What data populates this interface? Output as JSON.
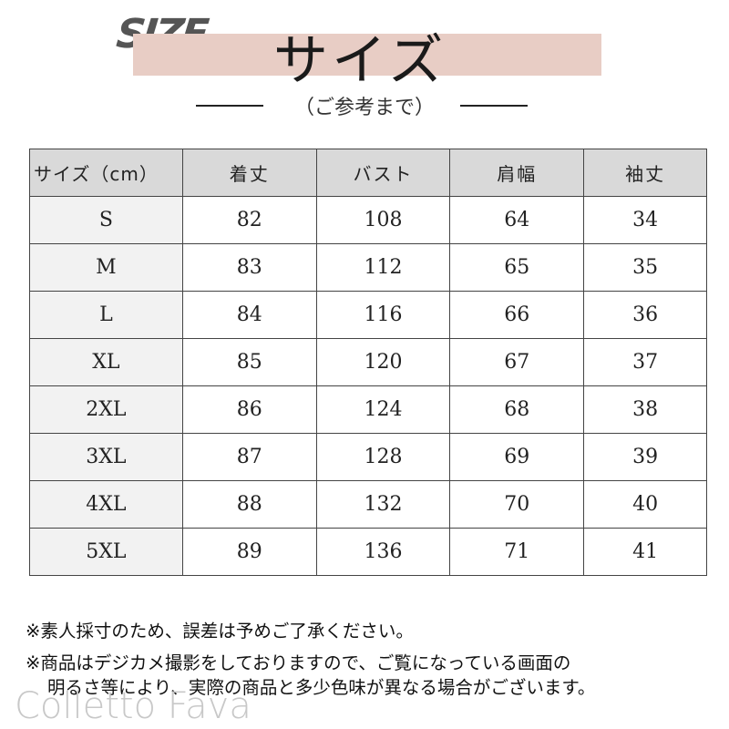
{
  "header": {
    "logo": "SIZE",
    "title": "サイズ",
    "subtitle": "（ご参考まで）"
  },
  "table": {
    "columns": [
      "サイズ（cm）",
      "着丈",
      "バスト",
      "肩幅",
      "袖丈"
    ],
    "rows": [
      [
        "S",
        "82",
        "108",
        "64",
        "34"
      ],
      [
        "M",
        "83",
        "112",
        "65",
        "35"
      ],
      [
        "L",
        "84",
        "116",
        "66",
        "36"
      ],
      [
        "XL",
        "85",
        "120",
        "67",
        "37"
      ],
      [
        "2XL",
        "86",
        "124",
        "68",
        "38"
      ],
      [
        "3XL",
        "87",
        "128",
        "69",
        "39"
      ],
      [
        "4XL",
        "88",
        "132",
        "70",
        "40"
      ],
      [
        "5XL",
        "89",
        "136",
        "71",
        "41"
      ]
    ]
  },
  "notes": [
    "※素人採寸のため、誤差は予めご了承ください。",
    "※商品はデジカメ撮影をしておりますので、ご覧になっている画面の",
    "明るさ等により、実際の商品と多少色味が異なる場合がございます。"
  ],
  "watermark": "Colletto Fava",
  "colors": {
    "band": "#e8cdc5",
    "header_bg": "#d9d9d9",
    "size_col_bg": "#f2f2f2"
  }
}
